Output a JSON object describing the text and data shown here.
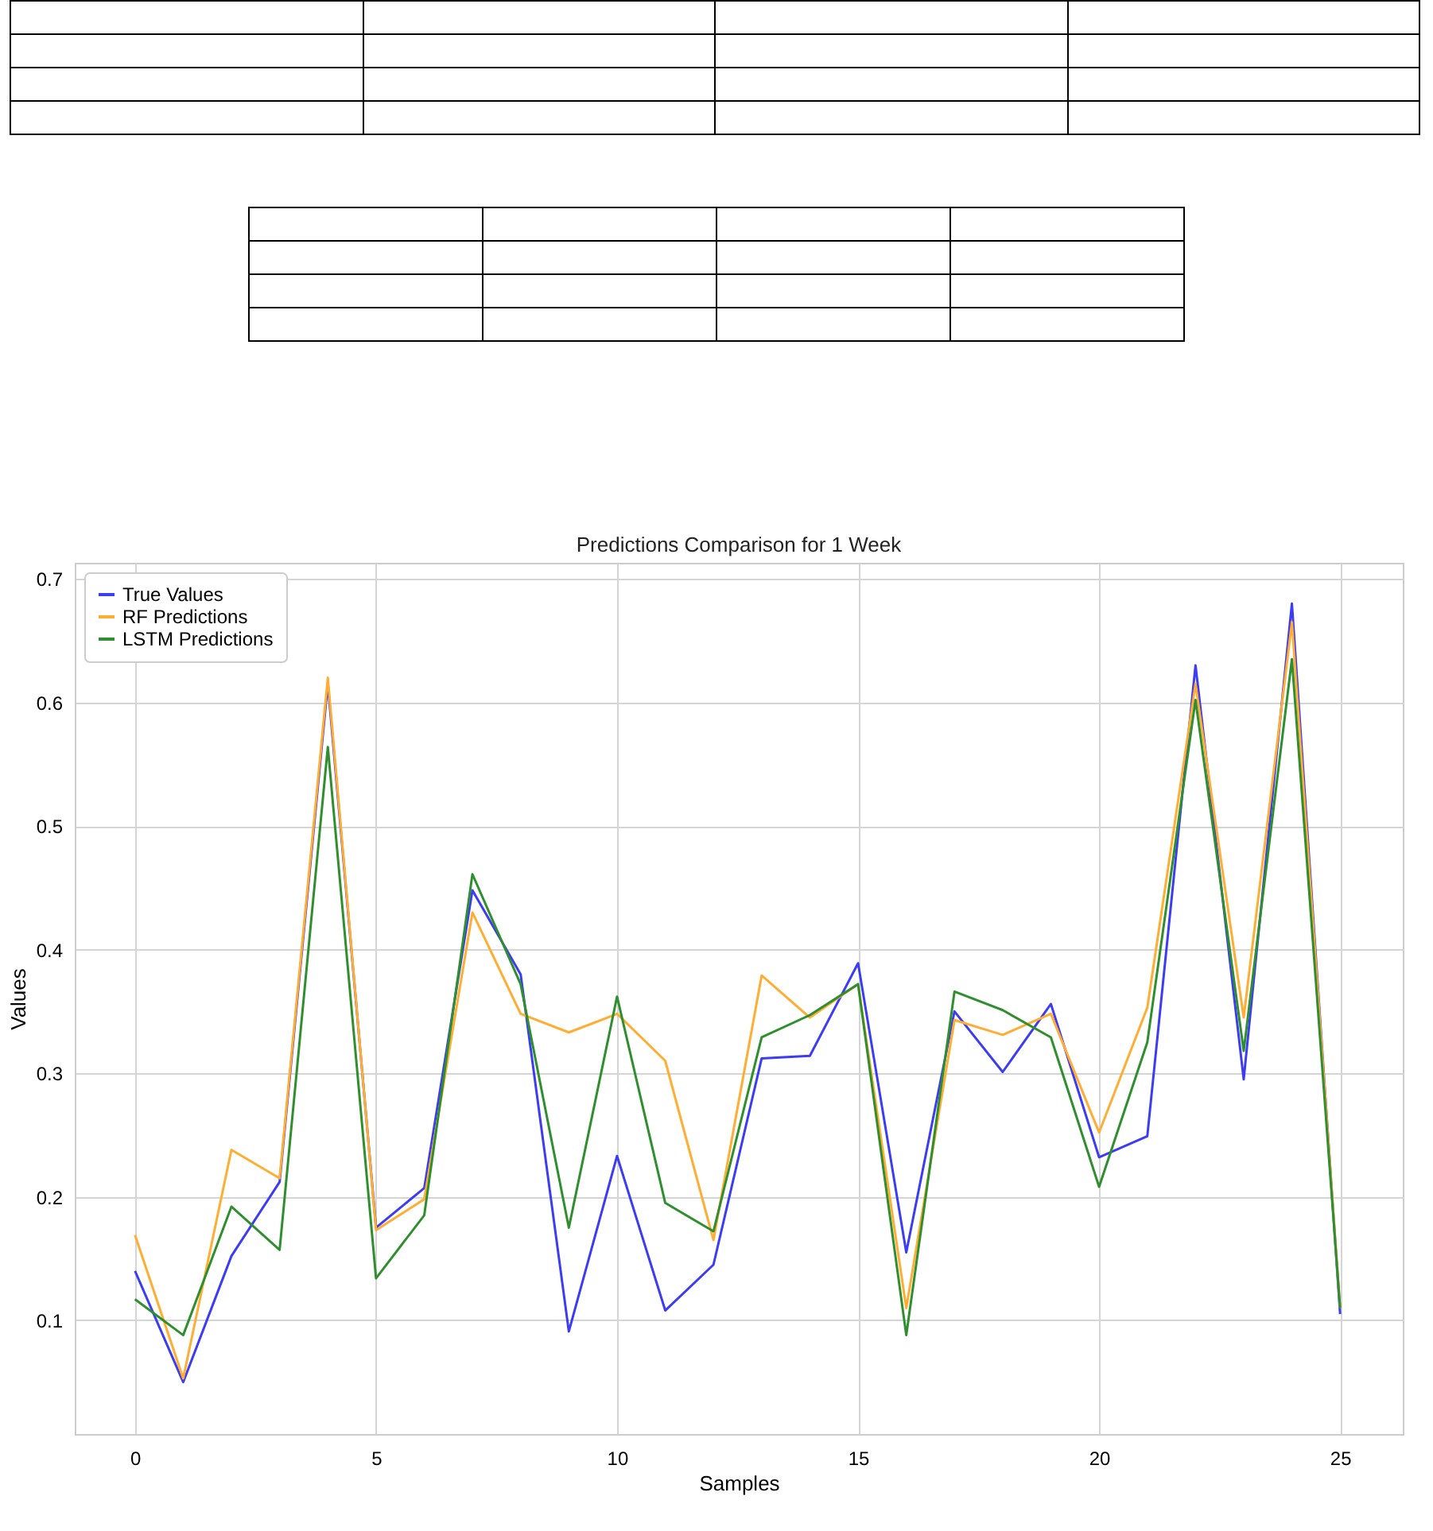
{
  "chart_data": {
    "type": "line",
    "title": "Predictions Comparison for 1 Week",
    "xlabel": "Samples",
    "ylabel": "Values",
    "x": [
      0,
      1,
      2,
      3,
      4,
      5,
      6,
      7,
      8,
      9,
      10,
      11,
      12,
      13,
      14,
      15,
      16,
      17,
      18,
      19,
      20,
      21,
      22,
      23,
      24,
      25
    ],
    "series": [
      {
        "name": "True Values",
        "color": "#3c3cf5",
        "values": [
          0.14,
          0.05,
          0.152,
          0.212,
          0.615,
          0.175,
          0.207,
          0.448,
          0.38,
          0.091,
          0.233,
          0.108,
          0.145,
          0.312,
          0.314,
          0.389,
          0.155,
          0.35,
          0.301,
          0.356,
          0.232,
          0.249,
          0.63,
          0.295,
          0.68,
          0.105
        ]
      },
      {
        "name": "RF Predictions",
        "color": "#ffad33",
        "values": [
          0.169,
          0.053,
          0.238,
          0.215,
          0.62,
          0.173,
          0.198,
          0.43,
          0.348,
          0.333,
          0.348,
          0.31,
          0.165,
          0.379,
          0.345,
          0.372,
          0.11,
          0.343,
          0.331,
          0.348,
          0.252,
          0.353,
          0.615,
          0.345,
          0.665,
          0.11
        ]
      },
      {
        "name": "LSTM Predictions",
        "color": "#2f8f2f",
        "values": [
          0.117,
          0.088,
          0.192,
          0.157,
          0.564,
          0.134,
          0.185,
          0.461,
          0.372,
          0.175,
          0.362,
          0.195,
          0.172,
          0.329,
          0.347,
          0.372,
          0.088,
          0.366,
          0.351,
          0.329,
          0.208,
          0.325,
          0.602,
          0.318,
          0.635,
          0.11
        ]
      }
    ],
    "xlim": [
      -1.25,
      26.3
    ],
    "xticks": [
      0,
      5,
      10,
      15,
      20,
      25
    ],
    "ylim": [
      0.008,
      0.713
    ],
    "yticks": [
      0.1,
      0.2,
      0.3,
      0.4,
      0.5,
      0.6,
      0.7
    ],
    "grid": true,
    "legend": "top left",
    "line_style": "solid",
    "marker": "none"
  }
}
